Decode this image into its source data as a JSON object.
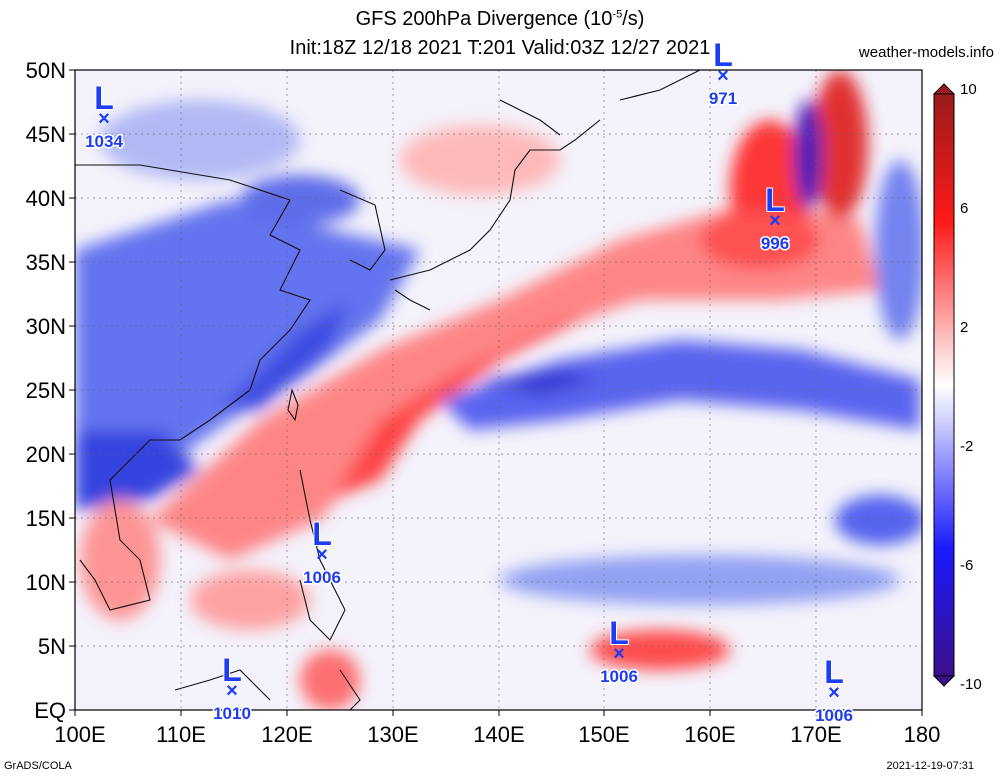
{
  "header": {
    "title_main": "GFS 200hPa Divergence (10",
    "title_exp": "-5",
    "title_unit": "/s)",
    "title_line2": "Init:18Z 12/18 2021 T:201 Valid:03Z 12/27 2021",
    "site": "weather-models.info"
  },
  "map": {
    "lat_labels": [
      "50N",
      "45N",
      "40N",
      "35N",
      "30N",
      "25N",
      "20N",
      "15N",
      "10N",
      "5N",
      "EQ"
    ],
    "lon_labels": [
      "100E",
      "110E",
      "120E",
      "130E",
      "140E",
      "150E",
      "160E",
      "170E",
      "180"
    ],
    "extent": {
      "lon": [
        100,
        180
      ],
      "lat": [
        0,
        50
      ]
    }
  },
  "colorbar": {
    "ticks": [
      "10",
      "6",
      "2",
      "-2",
      "-6",
      "-10"
    ],
    "colors": [
      "#9a1b1b",
      "#ff0000",
      "#ffffff",
      "#0000ff",
      "#3d108a"
    ]
  },
  "lows": [
    {
      "label": "L",
      "pressure": "1034",
      "lon": 103,
      "lat": 46
    },
    {
      "label": "L",
      "pressure": "971",
      "lon": 161,
      "lat": 49.5
    },
    {
      "label": "L",
      "pressure": "996",
      "lon": 166,
      "lat": 38
    },
    {
      "label": "L",
      "pressure": "1006",
      "lon": 123,
      "lat": 12
    },
    {
      "label": "L",
      "pressure": "1006",
      "lon": 151,
      "lat": 4.3
    },
    {
      "label": "L",
      "pressure": "1010",
      "lon": 115,
      "lat": 1.3
    },
    {
      "label": "L",
      "pressure": "1006",
      "lon": 172,
      "lat": 1.2
    }
  ],
  "footer": {
    "left": "GrADS/COLA",
    "right": "2021-12-19-07:31"
  }
}
